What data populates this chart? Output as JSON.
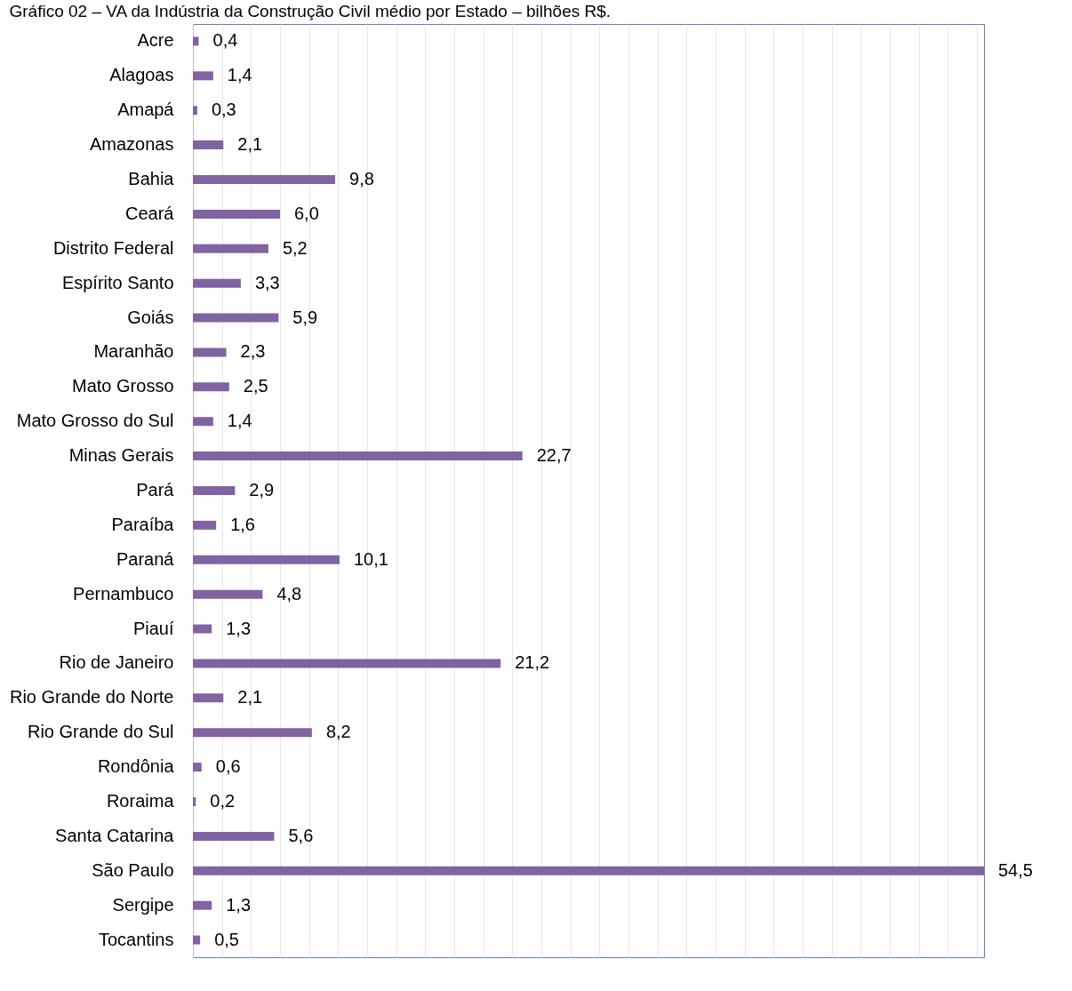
{
  "chart_data": {
    "type": "bar",
    "orientation": "horizontal",
    "title": "Gráfico 02 – VA da Indústria da Construção Civil médio por Estado – bilhões R$.",
    "categories": [
      "Acre",
      "Alagoas",
      "Amapá",
      "Amazonas",
      "Bahia",
      "Ceará",
      "Distrito Federal",
      "Espírito Santo",
      "Goiás",
      "Maranhão",
      "Mato Grosso",
      "Mato Grosso do Sul",
      "Minas Gerais",
      "Pará",
      "Paraíba",
      "Paraná",
      "Pernambuco",
      "Piauí",
      "Rio de Janeiro",
      "Rio Grande do Norte",
      "Rio Grande do Sul",
      "Rondônia",
      "Roraima",
      "Santa Catarina",
      "São Paulo",
      "Sergipe",
      "Tocantins"
    ],
    "values": [
      0.4,
      1.4,
      0.3,
      2.1,
      9.8,
      6.0,
      5.2,
      3.3,
      5.9,
      2.3,
      2.5,
      1.4,
      22.7,
      2.9,
      1.6,
      10.1,
      4.8,
      1.3,
      21.2,
      2.1,
      8.2,
      0.6,
      0.2,
      5.6,
      54.5,
      1.3,
      0.5
    ],
    "value_labels": [
      "0,4",
      "1,4",
      "0,3",
      "2,1",
      "9,8",
      "6,0",
      "5,2",
      "3,3",
      "5,9",
      "2,3",
      "2,5",
      "1,4",
      "22,7",
      "2,9",
      "1,6",
      "10,1",
      "4,8",
      "1,3",
      "21,2",
      "2,1",
      "8,2",
      "0,6",
      "0,2",
      "5,6",
      "54,5",
      "1,3",
      "0,5"
    ],
    "color": "#8064a2",
    "grid": "x",
    "tick_labels": "y"
  }
}
